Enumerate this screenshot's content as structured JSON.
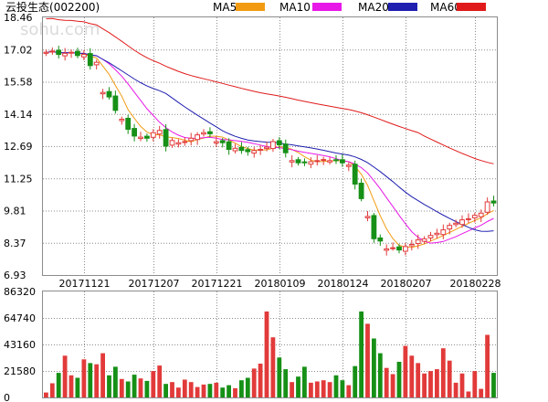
{
  "header": {
    "stock_name": "云投生态",
    "stock_code": "(002200)",
    "watermark": "sohu.com"
  },
  "legend": [
    {
      "label": "MA5",
      "color": "#f29b12"
    },
    {
      "label": "MA10",
      "color": "#e818e8"
    },
    {
      "label": "MA20",
      "color": "#1f1fb0"
    },
    {
      "label": "MA60",
      "color": "#e01a1a"
    }
  ],
  "colors": {
    "up": "#e23a3a",
    "down": "#169016",
    "grid": "#8c8c8c",
    "axis_text": "#000000"
  },
  "chart_data": [
    {
      "type": "candlestick",
      "title": "",
      "ylim": [
        6.93,
        18.46
      ],
      "y_ticks": [
        "18.46",
        "17.02",
        "15.58",
        "14.14",
        "12.69",
        "11.25",
        "9.81",
        "8.37",
        "6.93"
      ],
      "x_tick_labels": [
        "20171121",
        "20171207",
        "20171221",
        "20180109",
        "20180124",
        "20180207",
        "20180228"
      ],
      "x_tick_index": [
        6,
        17,
        27,
        37,
        47,
        57,
        68
      ],
      "grid": true,
      "close": [
        16.9,
        16.95,
        16.8,
        16.85,
        16.9,
        16.75,
        16.8,
        16.3,
        16.45,
        15.1,
        14.9,
        14.3,
        13.9,
        13.45,
        13.15,
        13.1,
        13.05,
        13.3,
        13.4,
        12.7,
        12.95,
        12.85,
        12.9,
        13.05,
        13.2,
        13.3,
        13.25,
        12.9,
        12.85,
        12.55,
        12.6,
        12.5,
        12.45,
        12.5,
        12.55,
        12.65,
        12.9,
        12.75,
        12.4,
        12.05,
        11.95,
        11.95,
        12.0,
        12.05,
        12.1,
        12.05,
        12.05,
        11.95,
        11.85,
        11.0,
        10.35,
        9.55,
        8.55,
        8.45,
        8.1,
        8.15,
        8.05,
        8.2,
        8.3,
        8.5,
        8.55,
        8.7,
        8.8,
        8.95,
        9.15,
        9.25,
        9.4,
        9.45,
        9.6,
        9.7,
        10.2,
        10.15
      ],
      "volume": [
        4000,
        11500,
        20000,
        34000,
        18000,
        16000,
        31000,
        28000,
        27000,
        36000,
        18000,
        25000,
        15000,
        13000,
        18500,
        15500,
        13500,
        21500,
        26000,
        11000,
        12500,
        8000,
        14500,
        12500,
        8500,
        10500,
        11000,
        12000,
        8000,
        10000,
        7500,
        14000,
        16000,
        23500,
        27500,
        70000,
        49000,
        32500,
        23000,
        12500,
        17000,
        25000,
        12000,
        13000,
        14000,
        12500,
        18000,
        14000,
        10000,
        25500,
        70000,
        60000,
        48000,
        36000,
        24000,
        19000,
        29000,
        42000,
        34000,
        28000,
        19500,
        21500,
        23000,
        40000,
        30000,
        12000,
        19500,
        4800,
        21500,
        7000,
        51000,
        20000
      ]
    },
    {
      "type": "bar",
      "title": "",
      "ylim": [
        0,
        86320
      ],
      "y_ticks": [
        "86320",
        "64740",
        "43160",
        "21580",
        "0"
      ],
      "grid": true
    }
  ]
}
